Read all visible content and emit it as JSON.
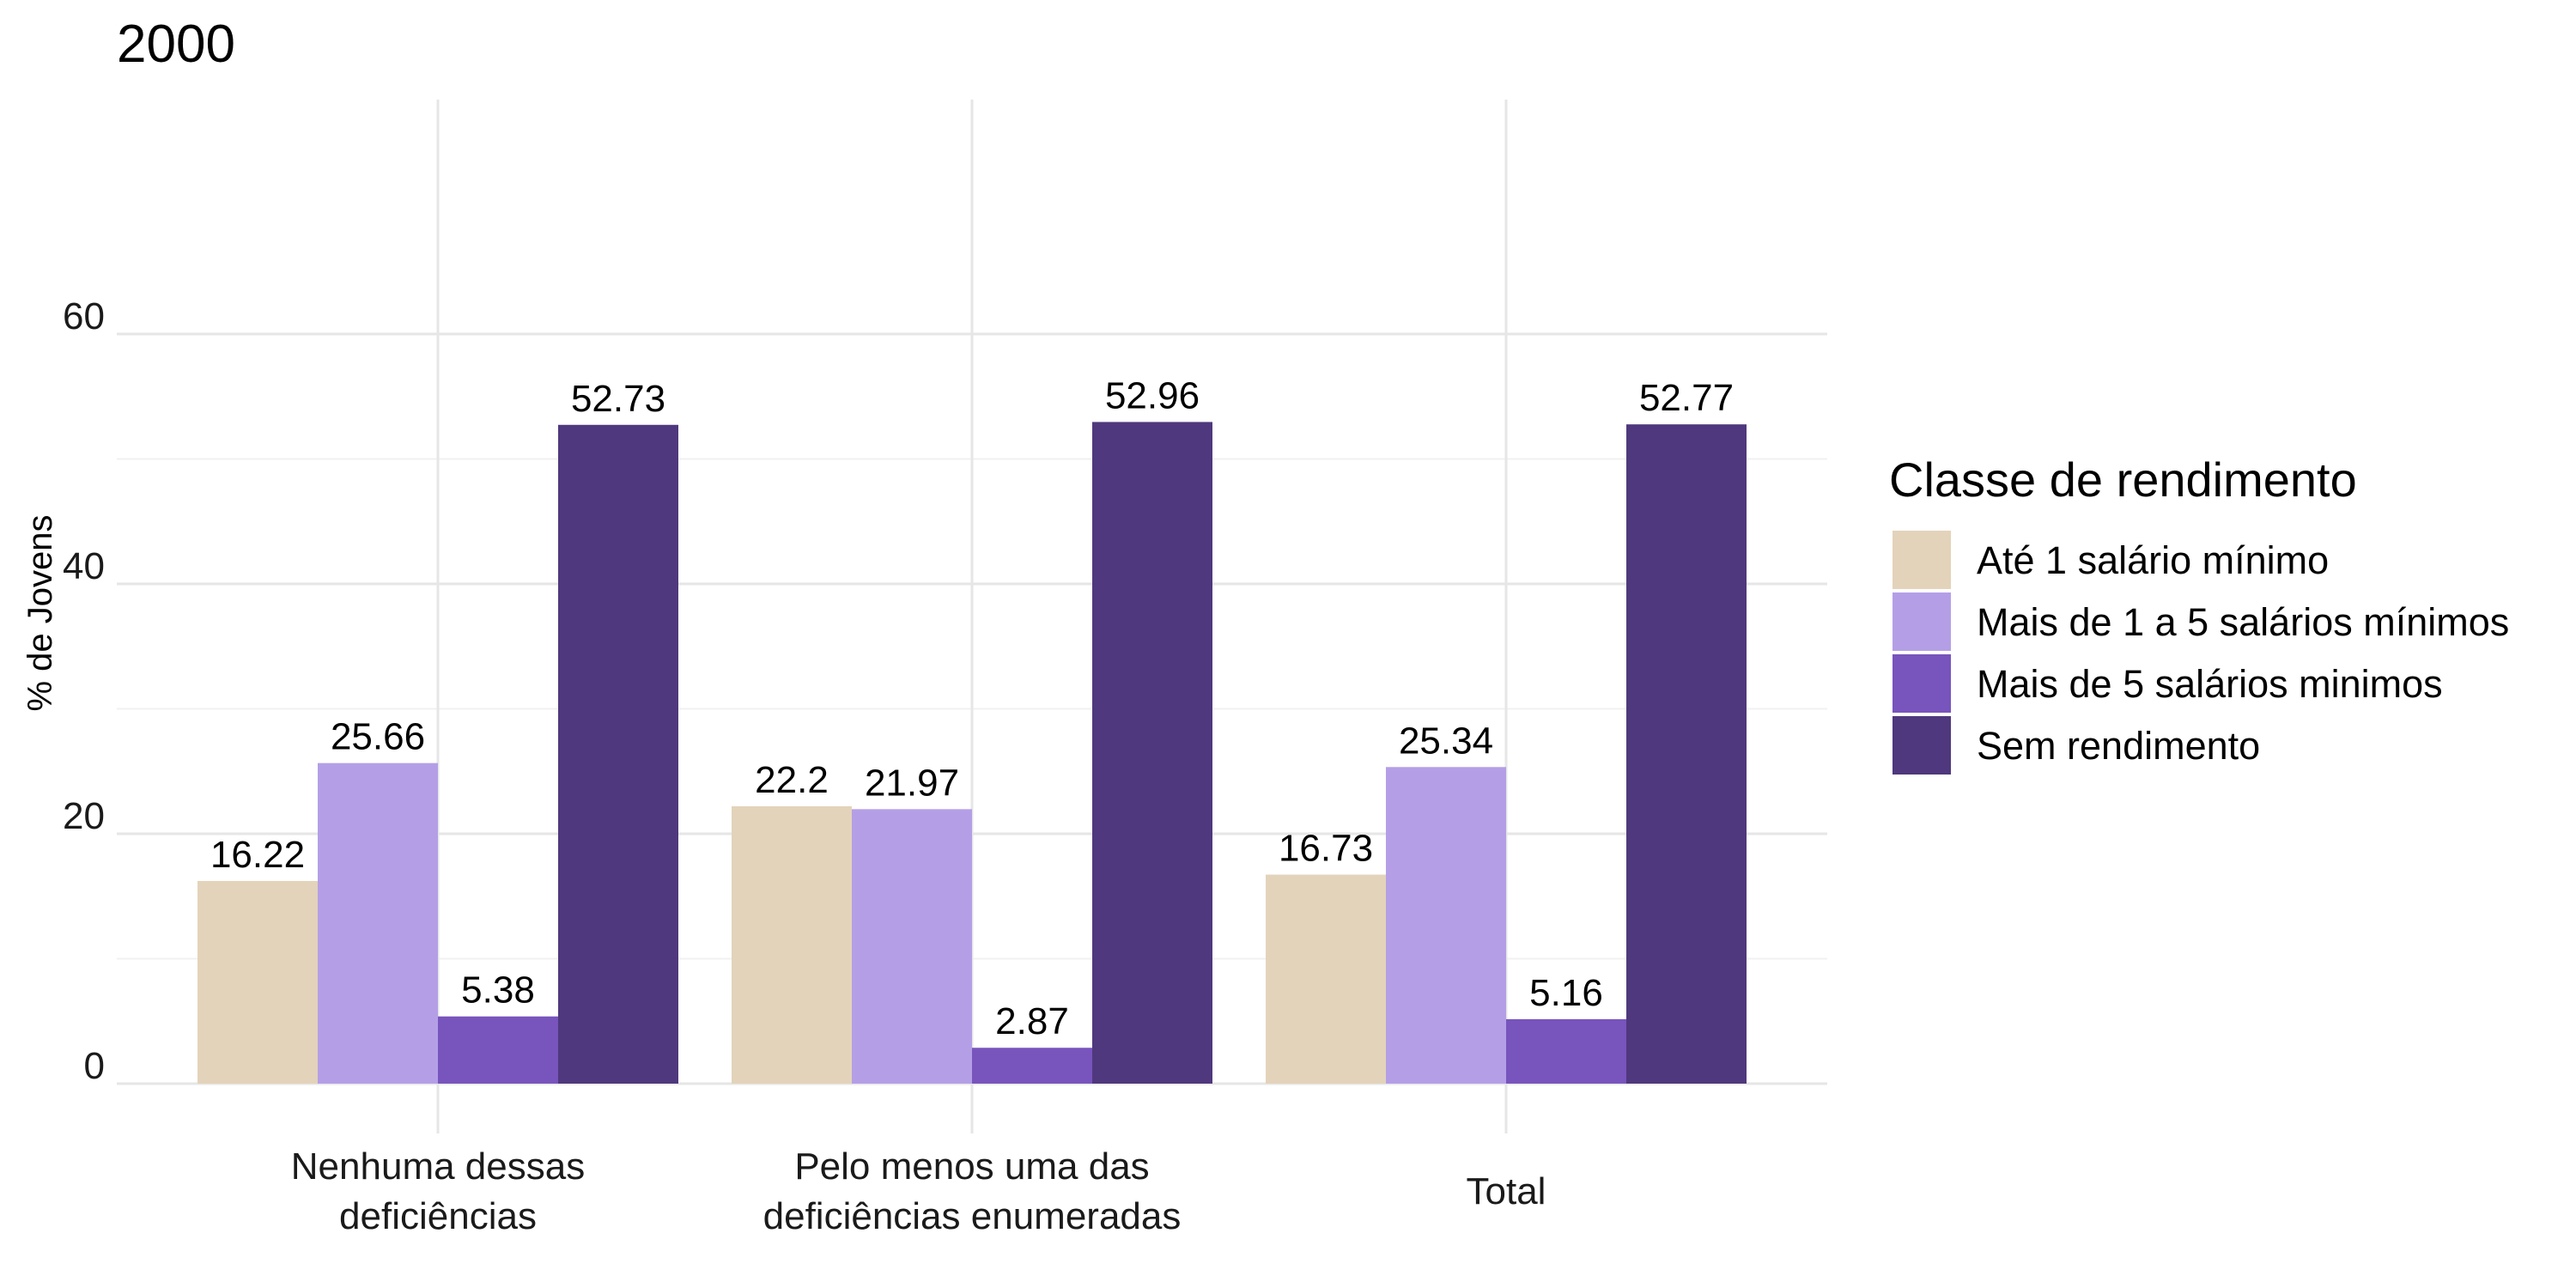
{
  "chart_data": {
    "type": "bar",
    "title": "2000",
    "xlabel": "",
    "ylabel": "% de Jovens",
    "ylim": [
      0,
      70
    ],
    "yticks": [
      0,
      20,
      40,
      60
    ],
    "grid": true,
    "legend_position": "right",
    "legend_title": "Classe de rendimento",
    "categories": [
      [
        "Nenhuma dessas",
        "deficiências"
      ],
      [
        "Pelo menos uma das",
        "deficiências enumeradas"
      ],
      [
        "Total"
      ]
    ],
    "series": [
      {
        "name": "Até 1 salário mínimo",
        "color": "#E3D3BA",
        "values": [
          16.22,
          22.2,
          16.73
        ]
      },
      {
        "name": "Mais de 1 a 5 salários mínimos",
        "color": "#B49FE7",
        "values": [
          25.66,
          21.97,
          25.34
        ]
      },
      {
        "name": "Mais de 5 salários minimos",
        "color": "#7854BD",
        "values": [
          5.38,
          2.87,
          5.16
        ]
      },
      {
        "name": "Sem rendimento",
        "color": "#4F387D",
        "values": [
          52.73,
          52.96,
          52.77
        ]
      }
    ]
  }
}
